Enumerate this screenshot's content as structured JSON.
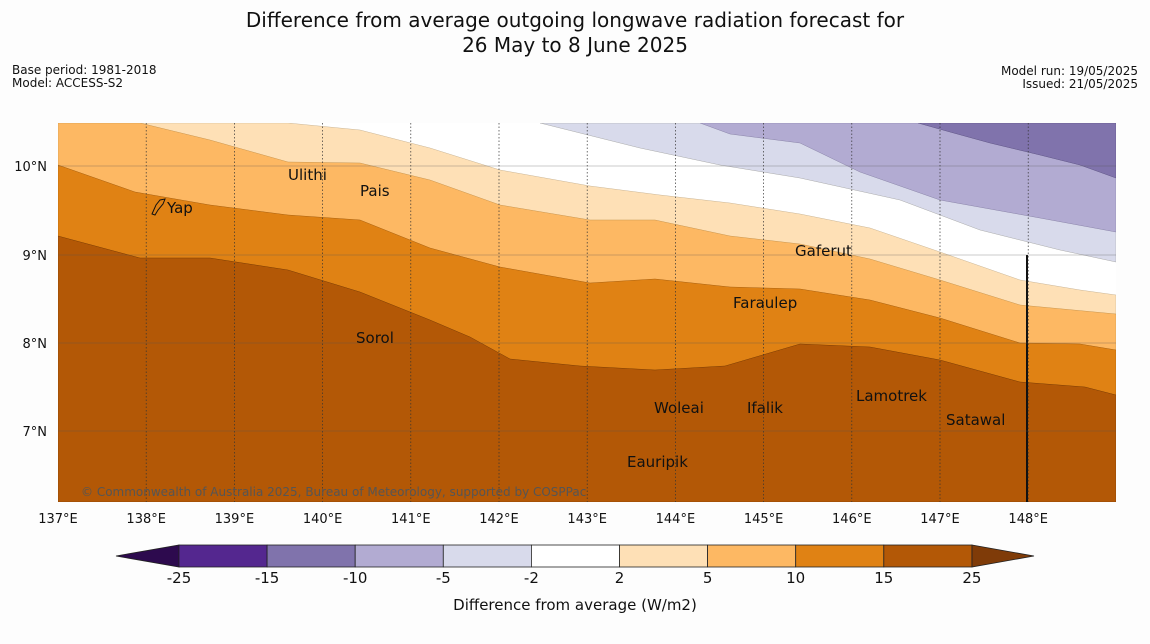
{
  "title": {
    "line1": "Difference from average outgoing longwave radiation forecast for",
    "line2": "26 May to 8 June 2025"
  },
  "meta_left": {
    "base_period": "Base period: 1981-2018",
    "model": "Model: ACCESS-S2"
  },
  "meta_right": {
    "model_run": "Model run: 19/05/2025",
    "issued": "Issued: 21/05/2025"
  },
  "map": {
    "lon_labels": [
      "137°E",
      "138°E",
      "139°E",
      "140°E",
      "141°E",
      "142°E",
      "143°E",
      "144°E",
      "145°E",
      "146°E",
      "147°E",
      "148°E"
    ],
    "lat_labels": [
      "10°N",
      "9°N",
      "8°N",
      "7°N"
    ],
    "places": [
      {
        "name": "Ulithi"
      },
      {
        "name": "Pais"
      },
      {
        "name": "Yap"
      },
      {
        "name": "Gaferut"
      },
      {
        "name": "Faraulep"
      },
      {
        "name": "Sorol"
      },
      {
        "name": "Lamotrek"
      },
      {
        "name": "Woleai"
      },
      {
        "name": "Ifalik"
      },
      {
        "name": "Satawal"
      },
      {
        "name": "Eauripik"
      }
    ],
    "copyright": "© Commonwealth of Australia 2025, Bureau of Meteorology, supported by COSPPac"
  },
  "colorbar": {
    "ticks": [
      "-25",
      "-15",
      "-10",
      "-5",
      "-2",
      "2",
      "5",
      "10",
      "15",
      "25"
    ],
    "label": "Difference from average (W/m2)",
    "colors": {
      "below_-25": "#2d0a4e",
      "-25_-15": "#54278f",
      "-15_-10": "#8073ac",
      "-10_-5": "#b2abd2",
      "-5_-2": "#d8daeb",
      "-2_2": "#ffffff",
      "2_5": "#fee0b6",
      "5_10": "#fdb863",
      "10_15": "#e08214",
      "15_25": "#b35806",
      "above_25": "#7f3b08"
    }
  }
}
